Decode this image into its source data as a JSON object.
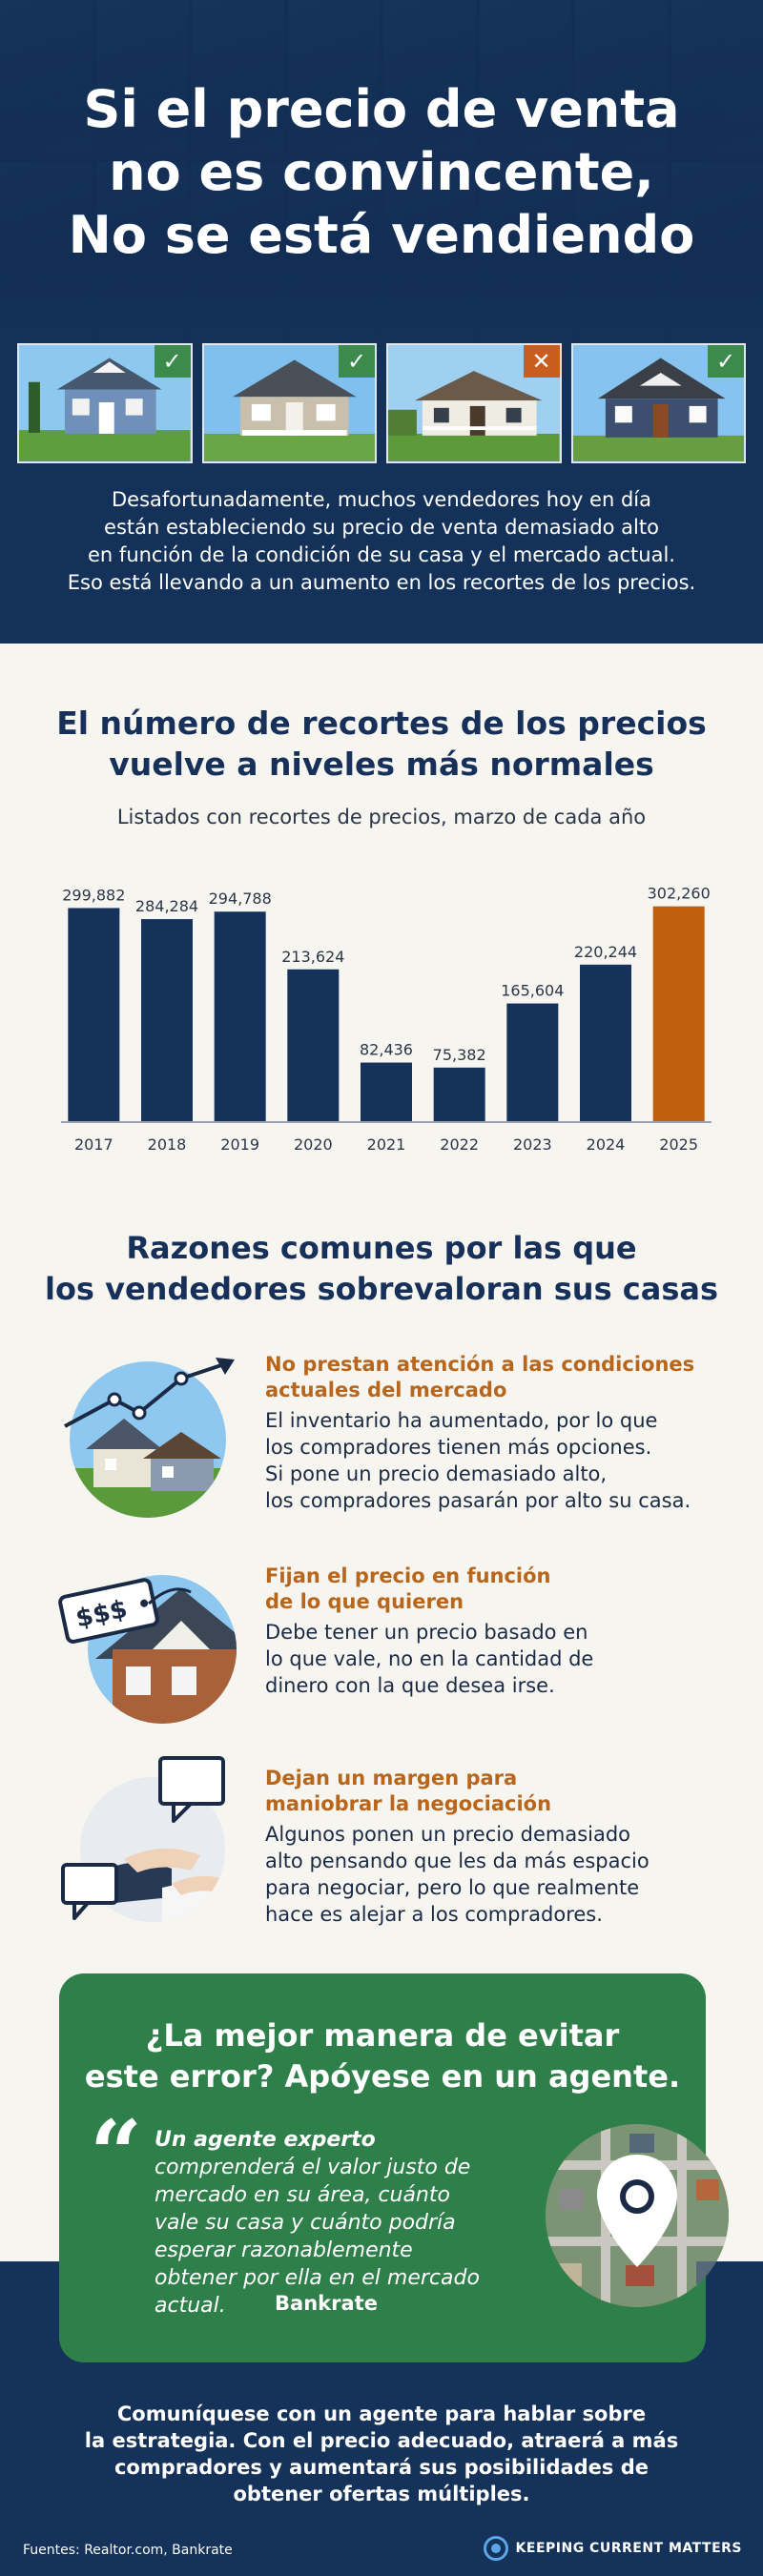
{
  "hero": {
    "title_lines": [
      "Si el precio de venta",
      "no es convincente,",
      "No se está vendiendo"
    ],
    "houses": [
      {
        "status": "check",
        "badge": "✓"
      },
      {
        "status": "check",
        "badge": "✓"
      },
      {
        "status": "cross",
        "badge": "✕"
      },
      {
        "status": "check",
        "badge": "✓"
      }
    ],
    "description_lines": [
      "Desafortunadamente, muchos vendedores hoy en día",
      "están estableciendo su precio de venta demasiado alto",
      "en función de la condición de su casa y el mercado actual.",
      "Eso está llevando a un aumento en los recortes de los precios."
    ]
  },
  "chart_section": {
    "title_lines": [
      "El número de recortes de los precios",
      "vuelve a niveles más normales"
    ],
    "subtitle": "Listados con recortes de precios, marzo de cada año"
  },
  "chart_data": {
    "type": "bar",
    "title": "El número de recortes de los precios vuelve a niveles más normales",
    "subtitle": "Listados con recortes de precios, marzo de cada año",
    "categories": [
      "2017",
      "2018",
      "2019",
      "2020",
      "2021",
      "2022",
      "2023",
      "2024",
      "2025"
    ],
    "values": [
      299882,
      284284,
      294788,
      213624,
      82436,
      75382,
      165604,
      220244,
      302260
    ],
    "value_labels": [
      "299,882",
      "284,284",
      "294,788",
      "213,624",
      "82,436",
      "75,382",
      "165,604",
      "220,244",
      "302,260"
    ],
    "highlight_index": 8,
    "ylim": [
      0,
      330000
    ],
    "grid": false,
    "colors": {
      "default": "#14325a",
      "highlight": "#c0600f"
    }
  },
  "reasons": {
    "title_lines": [
      "Razones comunes por las que",
      "los vendedores sobrevaloran sus casas"
    ],
    "items": [
      {
        "icon": "trending-houses-icon",
        "heading_lines": [
          "No prestan atención a las condiciones",
          "actuales del mercado"
        ],
        "body_lines": [
          "El inventario ha aumentado, por lo que",
          "los compradores tienen más opciones.",
          "Si pone un precio demasiado alto,",
          "los compradores pasarán por alto su casa."
        ]
      },
      {
        "icon": "price-tag-house-icon",
        "tag_text": "$$$",
        "heading_lines": [
          "Fijan el precio en función",
          "de lo que quieren"
        ],
        "body_lines": [
          "Debe tener un precio basado en",
          "lo que vale, no en la cantidad de",
          "dinero con la que desea irse."
        ]
      },
      {
        "icon": "negotiation-icon",
        "heading_lines": [
          "Dejan un margen para",
          "maniobrar la negociación"
        ],
        "body_lines": [
          "Algunos ponen un precio demasiado",
          "alto pensando que les da más espacio",
          "para negociar, pero lo que realmente",
          "hace es alejar a los compradores."
        ]
      }
    ]
  },
  "callout": {
    "title_lines": [
      "¿La mejor manera de evitar",
      "este error? Apóyese en un agente."
    ],
    "quote_mark": "“",
    "quote_bold": "Un agente experto",
    "quote_rest": " comprenderá el valor justo de mercado en su área, cuánto vale su casa y cuánto podría esperar razonablemente obtener por ella en el mercado actual.",
    "source": "Bankrate"
  },
  "footer": {
    "cta_lines": [
      "Comuníquese con un agente para hablar sobre",
      "la estrategia. Con el precio adecuado, atraerá a más",
      "compradores y aumentará sus posibilidades de",
      "obtener ofertas múltiples."
    ],
    "sources": "Fuentes: Realtor.com, Bankrate",
    "logo_text": "KEEPING CURRENT MATTERS"
  }
}
